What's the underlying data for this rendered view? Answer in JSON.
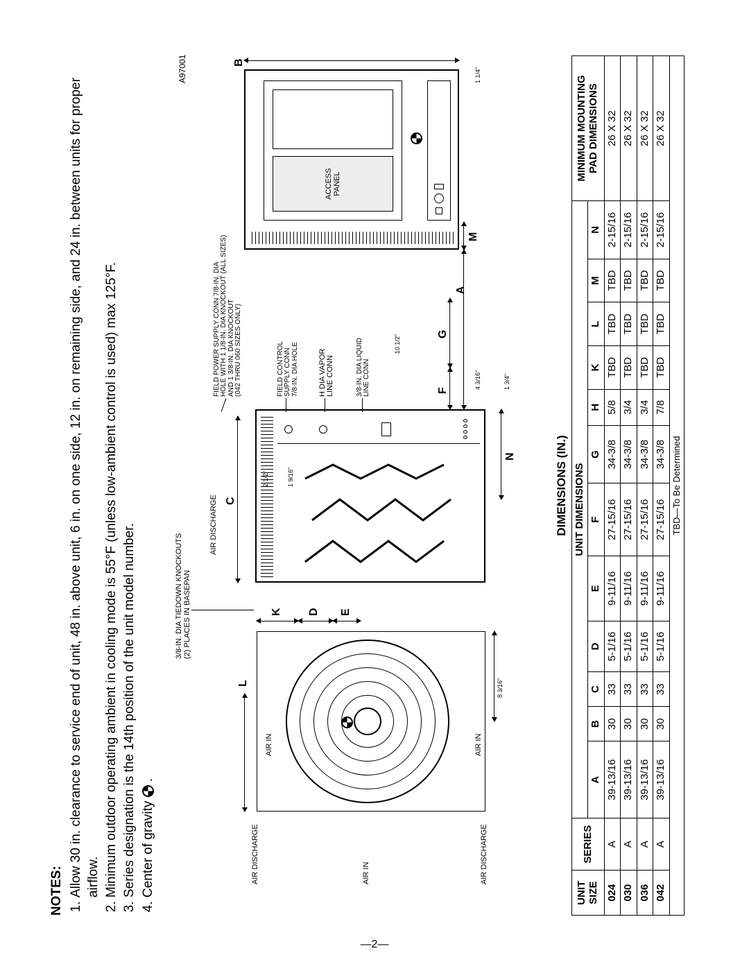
{
  "notes": {
    "title": "NOTES:",
    "items": [
      "Allow 30 in. clearance to service end of unit, 48 in. above unit, 6 in. on one side, 12 in. on remaining side, and 24 in. between units for proper airflow.",
      "Minimum outdoor operating ambient in cooling mode is 55°F (unless low-ambient control is used) max 125°F.",
      "Series designation is the 14th position of the unit model number.",
      "Center of gravity"
    ]
  },
  "diagram": {
    "tiedown_knockouts": "3/8-IN. DIA TIEDOWN KNOCKOUTS\n(2) PLACES IN BASEPAN",
    "air_discharge": "AIR DISCHARGE",
    "air_in": "AIR IN",
    "letters": {
      "L": "L",
      "K": "K",
      "D": "D",
      "E": "E",
      "C": "C",
      "A": "A",
      "B": "B",
      "F": "F",
      "G": "G",
      "M": "M",
      "N": "N"
    },
    "labels": {
      "field_power": "FIELD POWER SUPPLY CONN 7/8-IN. DIA\nHOLE WITH 1 1/8-IN. DIA KNOCKOUT (ALL SIZES)\nAND 1 3/8-IN. DIA KNOCKOUT\n(042 THRU 060 SIZES ONLY)",
      "field_control": "FIELD CONTROL\nSUPPLY CONN\n7/8-IN. DIA HOLE",
      "vapor": "H DIA VAPOR\nLINE CONN",
      "liquid": "3/8-IN. DIA LIQUID\nLINE CONN",
      "access": "ACCESS\nPANEL",
      "d2_1_2": "2 1/2\"",
      "d1_9_16": "1 9/16\"",
      "d10_1_2": "10 1/2\"",
      "d4_3_16": "4 3/16\"",
      "d1_3_4": "1 3/4\"",
      "d1_1_4": "1 1/4\"",
      "d8_3_16": "8 3/16\""
    },
    "code": "A97001"
  },
  "table": {
    "caption": "DIMENSIONS (IN.)",
    "header_group": "UNIT DIMENSIONS",
    "unit_size": "UNIT\nSIZE",
    "series": "SERIES",
    "pad": "MINIMUM MOUNTING\nPAD DIMENSIONS",
    "cols": [
      "A",
      "B",
      "C",
      "D",
      "E",
      "F",
      "G",
      "H",
      "K",
      "L",
      "M",
      "N"
    ],
    "rows": [
      {
        "size": "024",
        "series": "A",
        "A": "39-13/16",
        "B": "30",
        "C": "33",
        "D": "5-1/16",
        "E": "9-11/16",
        "F": "27-15/16",
        "G": "34-3/8",
        "H": "5/8",
        "K": "TBD",
        "L": "TBD",
        "M": "TBD",
        "N": "2-15/16",
        "pad": "26 X 32"
      },
      {
        "size": "030",
        "series": "A",
        "A": "39-13/16",
        "B": "30",
        "C": "33",
        "D": "5-1/16",
        "E": "9-11/16",
        "F": "27-15/16",
        "G": "34-3/8",
        "H": "3/4",
        "K": "TBD",
        "L": "TBD",
        "M": "TBD",
        "N": "2-15/16",
        "pad": "26 X 32"
      },
      {
        "size": "036",
        "series": "A",
        "A": "39-13/16",
        "B": "30",
        "C": "33",
        "D": "5-1/16",
        "E": "9-11/16",
        "F": "27-15/16",
        "G": "34-3/8",
        "H": "3/4",
        "K": "TBD",
        "L": "TBD",
        "M": "TBD",
        "N": "2-15/16",
        "pad": "26 X 32"
      },
      {
        "size": "042",
        "series": "A",
        "A": "39-13/16",
        "B": "30",
        "C": "33",
        "D": "5-1/16",
        "E": "9-11/16",
        "F": "27-15/16",
        "G": "34-3/8",
        "H": "7/8",
        "K": "TBD",
        "L": "TBD",
        "M": "TBD",
        "N": "2-15/16",
        "pad": "26 X 32"
      }
    ],
    "tbd": "TBD—To Be Determined"
  },
  "page_number": "—2—",
  "colors": {
    "ink": "#000000",
    "paper": "#ffffff"
  }
}
